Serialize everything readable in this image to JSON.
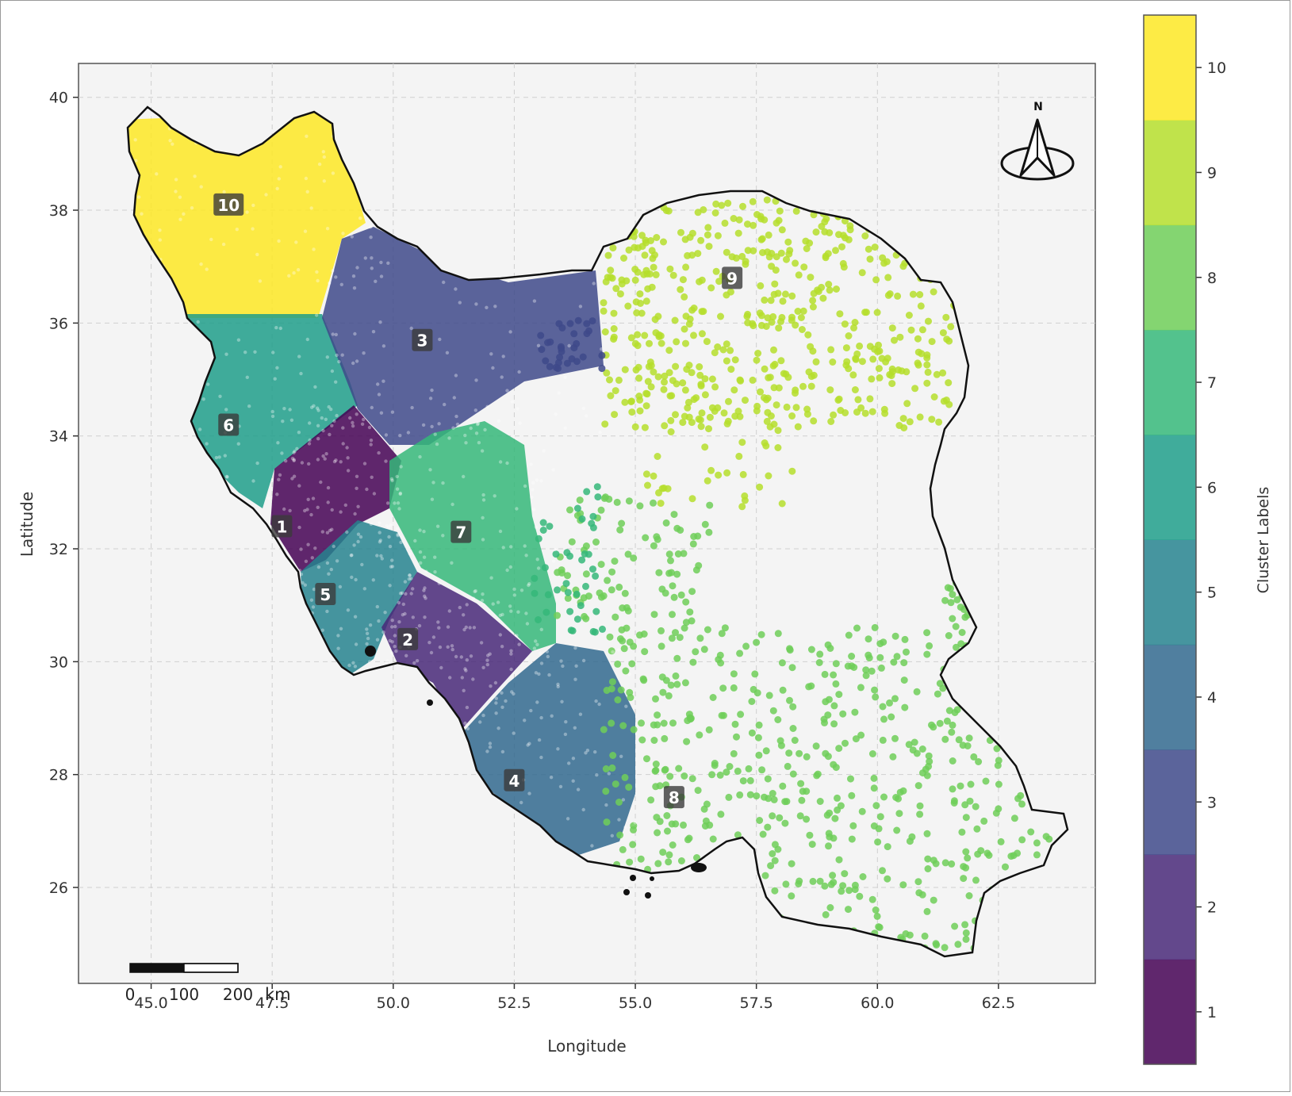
{
  "chart_data": {
    "type": "scatter",
    "title": "",
    "xlabel": "Longitude",
    "ylabel": "Latitude",
    "xlim": [
      43.5,
      64.5
    ],
    "ylim": [
      24.3,
      40.6
    ],
    "xticks": [
      "45.0",
      "47.5",
      "50.0",
      "52.5",
      "55.0",
      "57.5",
      "60.0",
      "62.5"
    ],
    "xtick_values": [
      45.0,
      47.5,
      50.0,
      52.5,
      55.0,
      57.5,
      60.0,
      62.5
    ],
    "yticks": [
      "26",
      "28",
      "30",
      "32",
      "34",
      "36",
      "38",
      "40"
    ],
    "ytick_values": [
      26,
      28,
      30,
      32,
      34,
      36,
      38,
      40
    ],
    "grid": true,
    "colorbar": {
      "label": "Cluster Labels",
      "ticks": [
        "1",
        "2",
        "3",
        "4",
        "5",
        "6",
        "7",
        "8",
        "9",
        "10"
      ],
      "colors": [
        "#440154",
        "#482878",
        "#3e4989",
        "#31688e",
        "#26828e",
        "#1f9e89",
        "#35b779",
        "#6ece58",
        "#b5de2b",
        "#fde725"
      ]
    },
    "clusters": [
      {
        "label": "1",
        "lon": 47.7,
        "lat": 32.4
      },
      {
        "label": "2",
        "lon": 50.3,
        "lat": 30.4
      },
      {
        "label": "3",
        "lon": 50.6,
        "lat": 35.7
      },
      {
        "label": "4",
        "lon": 52.5,
        "lat": 27.9
      },
      {
        "label": "5",
        "lon": 48.6,
        "lat": 31.2
      },
      {
        "label": "6",
        "lon": 46.6,
        "lat": 34.2
      },
      {
        "label": "7",
        "lon": 51.4,
        "lat": 32.3
      },
      {
        "label": "8",
        "lon": 55.8,
        "lat": 27.6
      },
      {
        "label": "9",
        "lon": 57.0,
        "lat": 36.8
      },
      {
        "label": "10",
        "lon": 46.6,
        "lat": 38.1
      }
    ],
    "north_arrow": "N",
    "scale_bar": {
      "ticks": [
        "0",
        "100",
        "200"
      ],
      "unit": "km"
    }
  }
}
